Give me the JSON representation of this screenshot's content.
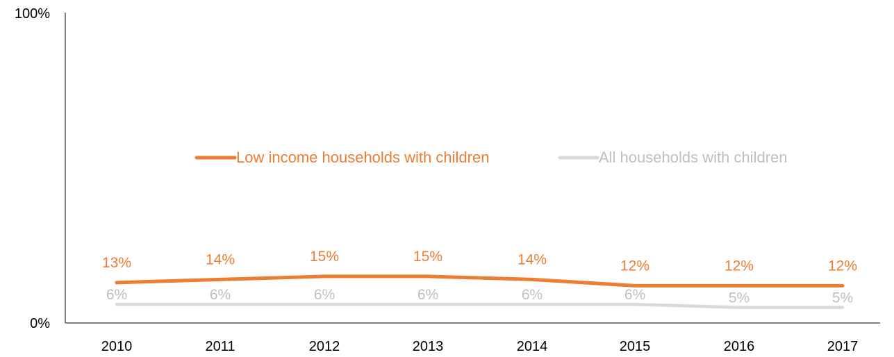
{
  "chart_data": {
    "type": "line",
    "title": "",
    "xlabel": "",
    "ylabel": "",
    "categories": [
      "2010",
      "2011",
      "2012",
      "2013",
      "2014",
      "2015",
      "2016",
      "2017"
    ],
    "ylim": [
      0,
      100
    ],
    "ytick_labels": [
      "0%",
      "100%"
    ],
    "grid": false,
    "legend_position": "center",
    "series": [
      {
        "name": "Low income households with children",
        "values": [
          13,
          14,
          15,
          15,
          14,
          12,
          12,
          12
        ],
        "labels": [
          "13%",
          "14%",
          "15%",
          "15%",
          "14%",
          "12%",
          "12%",
          "12%"
        ],
        "color": "#ED7D31"
      },
      {
        "name": "All households with children",
        "values": [
          6,
          6,
          6,
          6,
          6,
          6,
          5,
          5
        ],
        "labels": [
          "6%",
          "6%",
          "6%",
          "6%",
          "6%",
          "6%",
          "5%",
          "5%"
        ],
        "color": "#D9D9D9",
        "label_color": "#BFBFBF"
      }
    ]
  }
}
